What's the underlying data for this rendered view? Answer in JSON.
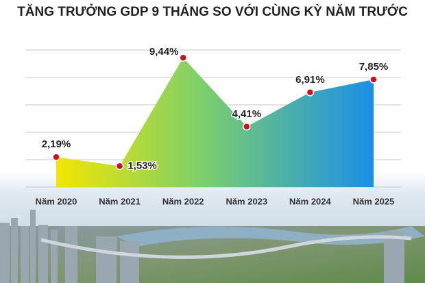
{
  "chart_data": {
    "type": "area",
    "title": "TĂNG TRƯỞNG GDP 9 THÁNG SO VỚI CÙNG KỲ NĂM TRƯỚC",
    "categories": [
      "Năm 2020",
      "Năm 2021",
      "Năm 2022",
      "Năm 2023",
      "Năm 2024",
      "Năm 2025"
    ],
    "values": [
      2.19,
      1.53,
      9.44,
      4.41,
      6.91,
      7.85
    ],
    "value_labels": [
      "2,19%",
      "1,53%",
      "9,44%",
      "4,41%",
      "6,91%",
      "7,85%"
    ],
    "colors": [
      "#f2e600",
      "#1a8fe6"
    ],
    "marker_color": "#d0101a",
    "ylim": [
      0,
      10
    ],
    "yticks": [
      0,
      2,
      4,
      6,
      8,
      10
    ],
    "grid": true
  }
}
